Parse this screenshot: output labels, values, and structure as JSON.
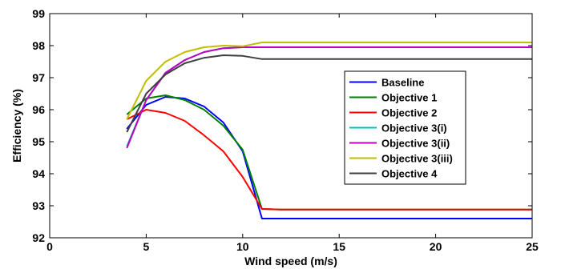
{
  "chart_data": {
    "type": "line",
    "title": "",
    "xlabel": "Wind speed (m/s)",
    "ylabel": "Efficiency (%)",
    "xlim": [
      0,
      25
    ],
    "ylim": [
      92,
      99
    ],
    "x_ticks": [
      "0",
      "5",
      "10",
      "15",
      "20",
      "25"
    ],
    "y_ticks": [
      "92",
      "93",
      "94",
      "95",
      "96",
      "97",
      "98",
      "99"
    ],
    "grid": false,
    "legend_position": "right",
    "series": [
      {
        "name": "Baseline",
        "color": "#0000ff",
        "x": [
          4,
          5,
          6,
          7,
          8,
          9,
          10,
          11,
          12,
          25
        ],
        "y": [
          95.4,
          96.15,
          96.4,
          96.35,
          96.1,
          95.6,
          94.7,
          92.6,
          92.6,
          92.6
        ]
      },
      {
        "name": "Objective 1",
        "color": "#008000",
        "x": [
          4,
          5,
          6,
          7,
          8,
          9,
          10,
          11,
          12,
          25
        ],
        "y": [
          95.85,
          96.35,
          96.45,
          96.3,
          96.0,
          95.5,
          94.75,
          92.9,
          92.88,
          92.88
        ]
      },
      {
        "name": "Objective 2",
        "color": "#ff0000",
        "x": [
          4,
          5,
          6,
          7,
          8,
          9,
          10,
          11,
          12,
          25
        ],
        "y": [
          95.7,
          96.0,
          95.9,
          95.65,
          95.2,
          94.7,
          93.9,
          92.9,
          92.88,
          92.88
        ]
      },
      {
        "name": "Objective 3(i)",
        "color": "#00bfbf",
        "x": [
          4,
          5,
          6,
          7,
          8,
          9,
          10,
          11,
          12,
          25
        ],
        "y": [
          94.85,
          96.3,
          97.15,
          97.55,
          97.8,
          97.92,
          97.95,
          97.95,
          97.95,
          97.95
        ]
      },
      {
        "name": "Objective 3(ii)",
        "color": "#bf00bf",
        "x": [
          4,
          5,
          6,
          7,
          8,
          9,
          10,
          11,
          12,
          25
        ],
        "y": [
          94.8,
          96.3,
          97.15,
          97.55,
          97.8,
          97.92,
          97.95,
          97.95,
          97.95,
          97.95
        ]
      },
      {
        "name": "Objective 3(iii)",
        "color": "#bfbf00",
        "x": [
          4,
          5,
          6,
          7,
          8,
          9,
          10,
          11,
          12,
          25
        ],
        "y": [
          95.7,
          96.9,
          97.5,
          97.8,
          97.95,
          98.0,
          97.98,
          98.1,
          98.1,
          98.1
        ]
      },
      {
        "name": "Objective 4",
        "color": "#404040",
        "x": [
          4,
          5,
          6,
          7,
          8,
          9,
          10,
          11,
          12,
          25
        ],
        "y": [
          95.3,
          96.5,
          97.1,
          97.45,
          97.62,
          97.7,
          97.68,
          97.58,
          97.58,
          97.58
        ]
      }
    ]
  }
}
